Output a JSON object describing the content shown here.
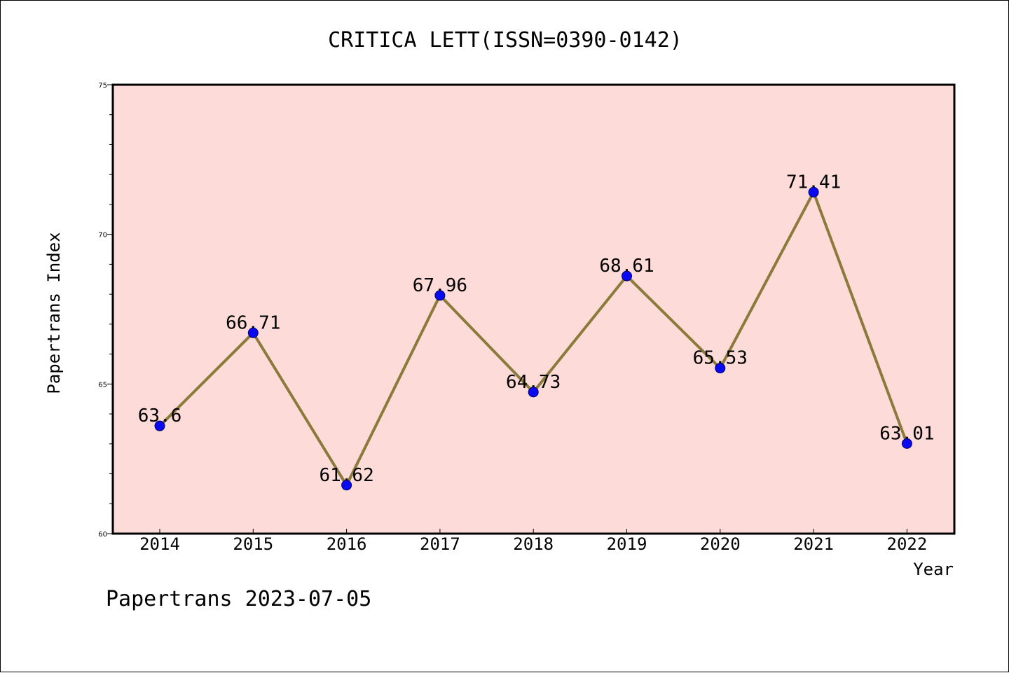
{
  "chart_data": {
    "type": "line",
    "title": "CRITICA LETT(ISSN=0390-0142)",
    "xlabel": "Year",
    "ylabel": "Papertrans Index",
    "categories": [
      "2014",
      "2015",
      "2016",
      "2017",
      "2018",
      "2019",
      "2020",
      "2021",
      "2022"
    ],
    "series": [
      {
        "values": [
          63.6,
          66.71,
          61.62,
          67.96,
          64.73,
          68.61,
          65.53,
          71.41,
          63.01
        ],
        "labels": [
          "63.6",
          "66.71",
          "61.62",
          "67.96",
          "64.73",
          "68.61",
          "65.53",
          "71.41",
          "63.01"
        ]
      }
    ],
    "ylim": [
      60,
      75
    ],
    "yticks": [
      60,
      65,
      70,
      75
    ],
    "grid": false,
    "plot_background": "#fddbd8",
    "line_color": "#8b7a3a",
    "marker_color": "#0a0af0"
  },
  "footer": "Papertrans 2023-07-05"
}
